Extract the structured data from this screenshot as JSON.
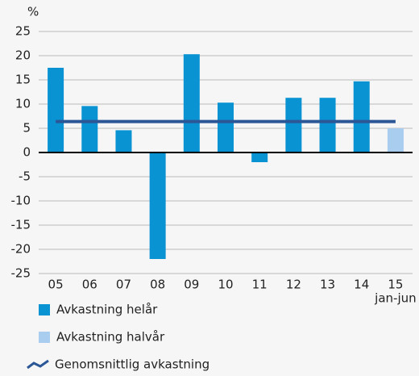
{
  "chart_data": {
    "type": "bar",
    "y_label": "%",
    "categories": [
      "05",
      "06",
      "07",
      "08",
      "09",
      "10",
      "11",
      "12",
      "13",
      "14",
      "15"
    ],
    "annotation": "jan-jun",
    "series": [
      {
        "name": "Avkastning helår",
        "color": "#0a93d2",
        "values": [
          17.5,
          9.6,
          4.6,
          -22,
          20.3,
          10.3,
          -2,
          11.3,
          11.3,
          14.7,
          null
        ]
      },
      {
        "name": "Avkastning halvår",
        "color": "#a8cdee",
        "values": [
          null,
          null,
          null,
          null,
          null,
          null,
          null,
          null,
          null,
          null,
          5.0
        ]
      },
      {
        "name": "Genomsnittlig avkastning",
        "type": "line",
        "color": "#2b5797",
        "values": [
          6.4,
          6.4,
          6.4,
          6.4,
          6.4,
          6.4,
          6.4,
          6.4,
          6.4,
          6.4,
          6.4
        ]
      }
    ],
    "ylim": [
      -25,
      25
    ],
    "yticks": [
      25,
      20,
      15,
      10,
      5,
      0,
      -5,
      -10,
      -15,
      -20,
      -25
    ],
    "grid": true
  }
}
